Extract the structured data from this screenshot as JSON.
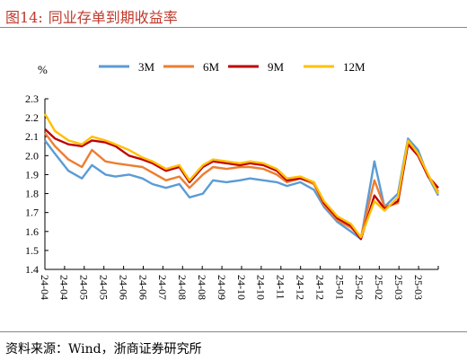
{
  "figure": {
    "number": "图14:",
    "title": "同业存单到期收益率",
    "source": "资料来源：Wind，浙商证券研究所"
  },
  "chart_data": {
    "type": "line",
    "title": "同业存单到期收益率",
    "xlabel": "",
    "ylabel": "%",
    "ylim": [
      1.4,
      2.3
    ],
    "yticks": [
      "1.4",
      "1.5",
      "1.6",
      "1.7",
      "1.8",
      "1.9",
      "2.0",
      "2.1",
      "2.2",
      "2.3"
    ],
    "xticks": [
      "24-04",
      "24-04",
      "24-05",
      "24-05",
      "24-06",
      "24-06",
      "24-07",
      "24-08",
      "24-08",
      "24-09",
      "24-10",
      "24-10",
      "24-11",
      "24-12",
      "24-12",
      "25-01",
      "25-02",
      "25-02",
      "25-03",
      "25-03"
    ],
    "grid": false,
    "legend": "top",
    "x": [
      0,
      3,
      7,
      11,
      14,
      18,
      21,
      25,
      29,
      32,
      36,
      40,
      43,
      47,
      50,
      54,
      58,
      61,
      65,
      69,
      72,
      76,
      80,
      83,
      87,
      91,
      94,
      98,
      101,
      105,
      108,
      111,
      114,
      117
    ],
    "series": [
      {
        "name": "3M",
        "color": "#5b9bd5",
        "values": [
          2.08,
          2.01,
          1.92,
          1.88,
          1.95,
          1.9,
          1.89,
          1.9,
          1.88,
          1.85,
          1.83,
          1.85,
          1.78,
          1.8,
          1.87,
          1.86,
          1.87,
          1.88,
          1.87,
          1.86,
          1.84,
          1.86,
          1.82,
          1.73,
          1.65,
          1.6,
          1.56,
          1.97,
          1.73,
          1.8,
          2.09,
          2.03,
          1.89,
          1.79
        ]
      },
      {
        "name": "6M",
        "color": "#ed7d31",
        "values": [
          2.12,
          2.05,
          1.98,
          1.94,
          2.03,
          1.97,
          1.96,
          1.95,
          1.94,
          1.91,
          1.87,
          1.89,
          1.83,
          1.9,
          1.94,
          1.93,
          1.94,
          1.94,
          1.93,
          1.9,
          1.86,
          1.88,
          1.85,
          1.74,
          1.66,
          1.62,
          1.57,
          1.87,
          1.73,
          1.75,
          2.07,
          2.01,
          1.89,
          1.81
        ]
      },
      {
        "name": "9M",
        "color": "#c00000",
        "values": [
          2.14,
          2.09,
          2.06,
          2.05,
          2.08,
          2.07,
          2.05,
          2.0,
          1.98,
          1.96,
          1.92,
          1.94,
          1.86,
          1.94,
          1.97,
          1.96,
          1.95,
          1.96,
          1.95,
          1.92,
          1.87,
          1.88,
          1.86,
          1.75,
          1.67,
          1.63,
          1.56,
          1.79,
          1.72,
          1.76,
          2.06,
          2.0,
          1.89,
          1.83
        ]
      },
      {
        "name": "12M",
        "color": "#ffc000",
        "values": [
          2.22,
          2.13,
          2.08,
          2.06,
          2.1,
          2.08,
          2.06,
          2.03,
          1.99,
          1.97,
          1.93,
          1.95,
          1.87,
          1.95,
          1.98,
          1.97,
          1.96,
          1.97,
          1.96,
          1.93,
          1.88,
          1.89,
          1.86,
          1.76,
          1.68,
          1.64,
          1.57,
          1.76,
          1.71,
          1.78,
          2.08,
          2.01,
          1.9,
          1.8
        ]
      }
    ]
  }
}
